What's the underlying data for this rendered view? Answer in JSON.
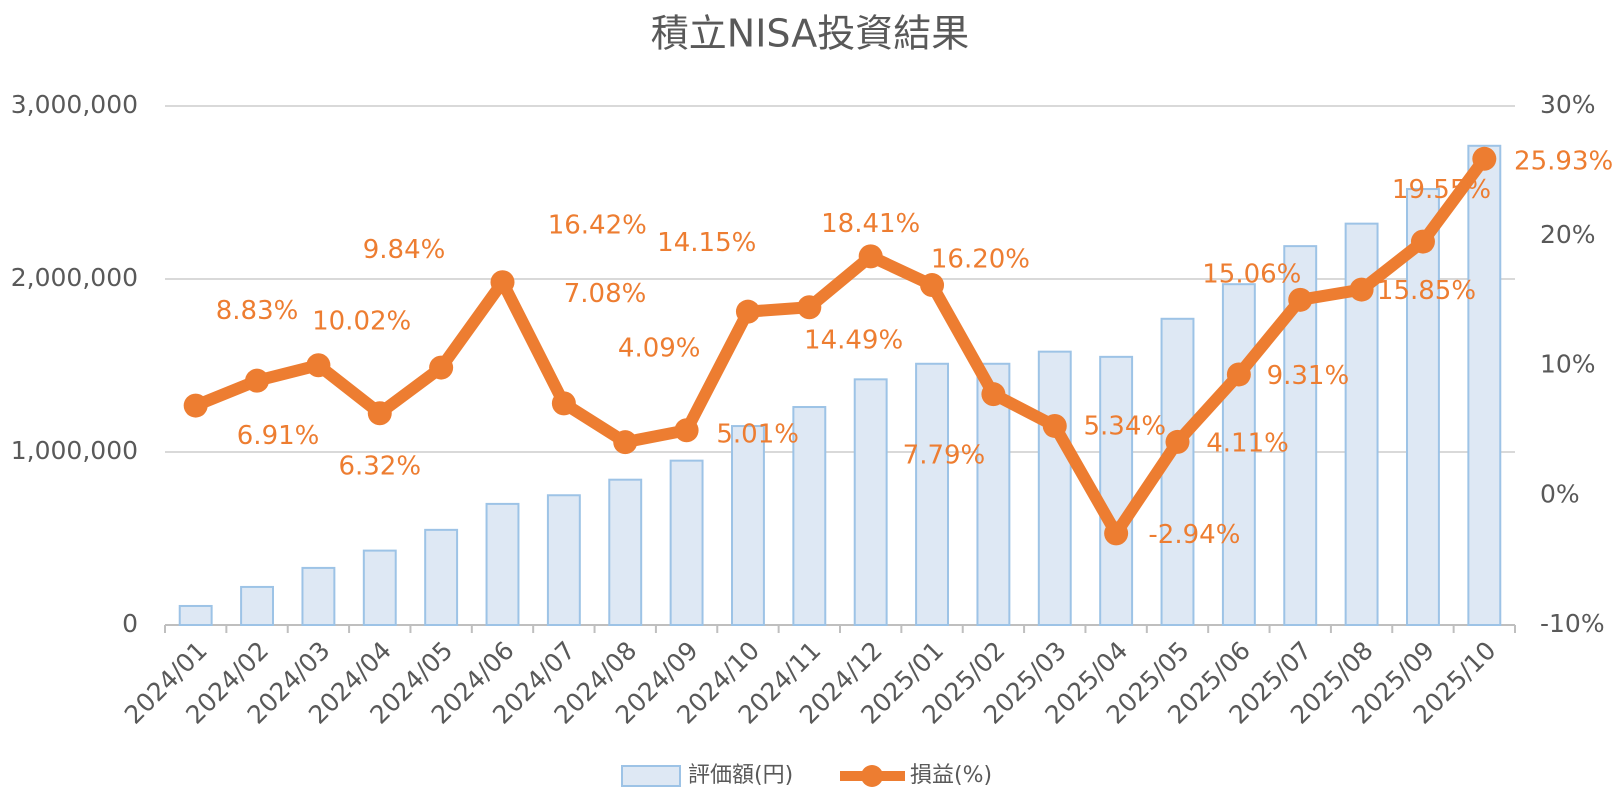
{
  "chart_data": {
    "type": "bar-line",
    "title": "積立NISA投資結果",
    "categories": [
      "2024/01",
      "2024/02",
      "2024/03",
      "2024/04",
      "2024/05",
      "2024/06",
      "2024/07",
      "2024/08",
      "2024/09",
      "2024/10",
      "2024/11",
      "2024/12",
      "2025/01",
      "2025/02",
      "2025/03",
      "2025/04",
      "2025/05",
      "2025/06",
      "2025/07",
      "2025/08",
      "2025/09",
      "2025/10"
    ],
    "series": [
      {
        "name": "評価額(円)",
        "type": "bar",
        "color": "#dee8f4",
        "edge_color": "#9dc3e6",
        "values": [
          110000,
          220000,
          330000,
          430000,
          550000,
          700000,
          750000,
          840000,
          950000,
          1150000,
          1260000,
          1420000,
          1510000,
          1510000,
          1580000,
          1550000,
          1770000,
          1970000,
          2190000,
          2320000,
          2520000,
          2770000
        ]
      },
      {
        "name": "損益(%)",
        "type": "line",
        "axis": "y2",
        "color": "#ed7d31",
        "values": [
          6.91,
          8.83,
          10.02,
          6.32,
          9.84,
          16.42,
          7.08,
          4.09,
          5.01,
          14.15,
          14.49,
          18.41,
          16.2,
          7.79,
          5.34,
          -2.94,
          4.11,
          9.31,
          15.06,
          15.85,
          19.55,
          25.93
        ],
        "value_labels": [
          "6.91%",
          "8.83%",
          "10.02%",
          "6.32%",
          "9.84%",
          "16.42%",
          "7.08%",
          "4.09%",
          "5.01%",
          "14.15%",
          "14.49%",
          "18.41%",
          "16.20%",
          "7.79%",
          "5.34%",
          "-2.94%",
          "4.11%",
          "9.31%",
          "15.06%",
          "15.85%",
          "19.55%",
          "25.93%"
        ]
      }
    ],
    "ylim": [
      0,
      3000000
    ],
    "yticks": [
      0,
      {
        "value": 1000000,
        "label": "1,000,000"
      },
      {
        "value": 2000000,
        "label": "2,000,000"
      },
      {
        "value": 3000000,
        "label": "3,000,000"
      }
    ],
    "y2lim": [
      -10,
      30
    ],
    "y2ticks": [
      {
        "value": -10,
        "label": "-10%"
      },
      {
        "value": 0,
        "label": "0%"
      },
      {
        "value": 10,
        "label": "10%"
      },
      {
        "value": 20,
        "label": "20%"
      },
      {
        "value": 30,
        "label": "30%"
      }
    ],
    "grid": true,
    "legend": "bottom"
  }
}
